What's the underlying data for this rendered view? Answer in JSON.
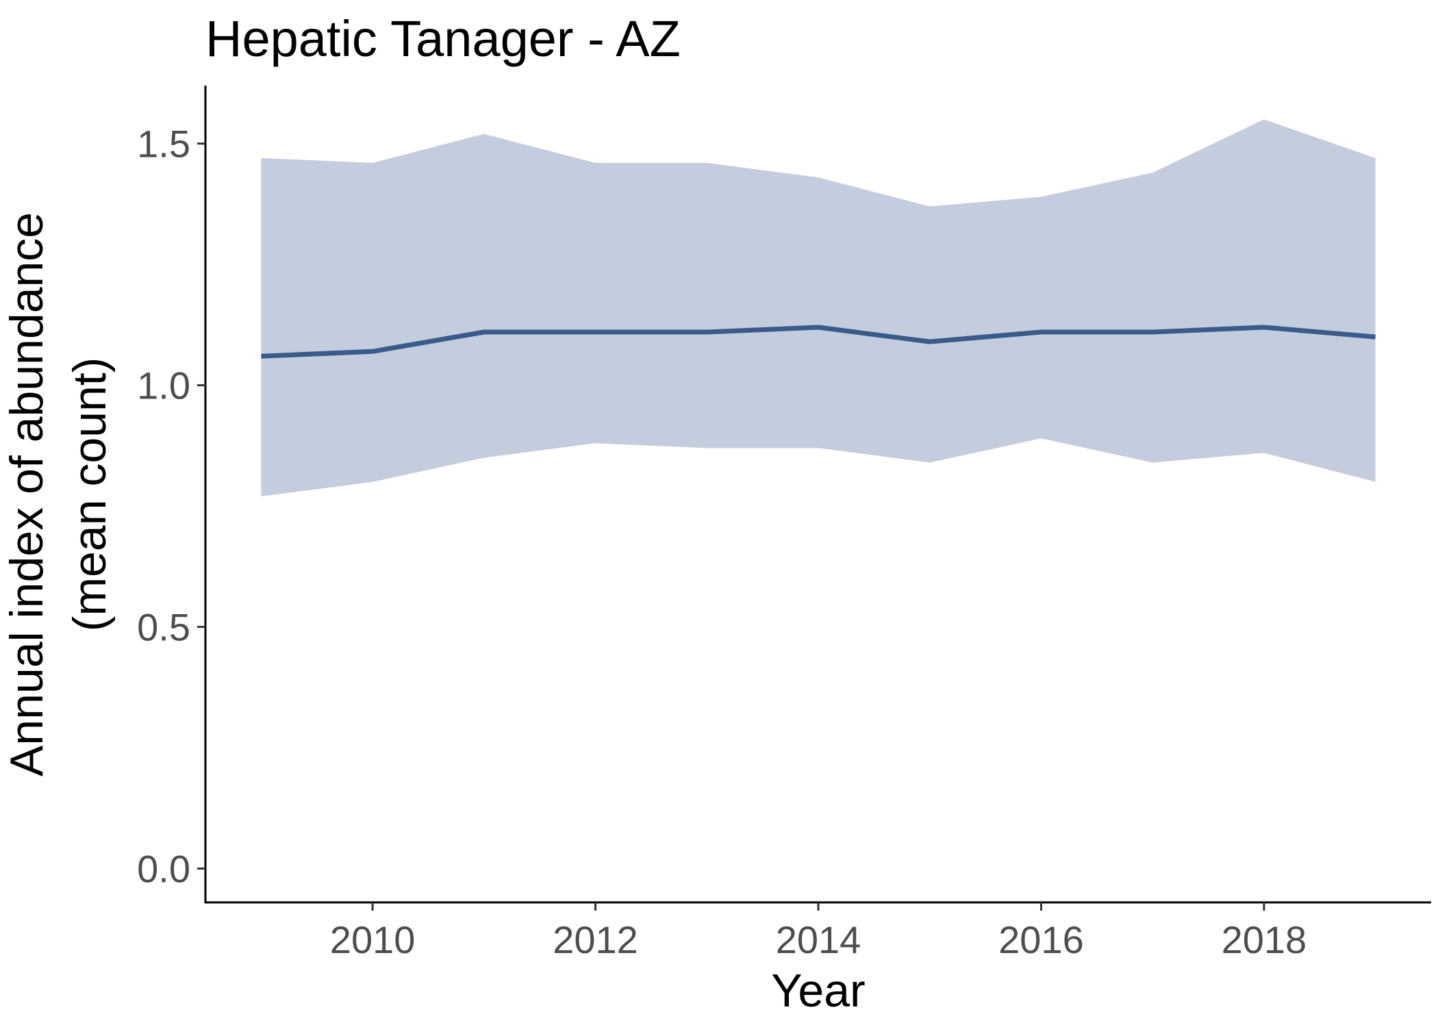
{
  "chart_data": {
    "type": "line",
    "title": "Hepatic Tanager - AZ",
    "xlabel": "Year",
    "ylabel_lines": [
      "Annual index of abundance",
      "(mean count)"
    ],
    "xlim": [
      2008.5,
      2019.5
    ],
    "ylim": [
      -0.07,
      1.62
    ],
    "x_ticks": [
      2010,
      2012,
      2014,
      2016,
      2018
    ],
    "x_tick_labels": [
      "2010",
      "2012",
      "2014",
      "2016",
      "2018"
    ],
    "y_ticks": [
      0.0,
      0.5,
      1.0,
      1.5
    ],
    "y_tick_labels": [
      "0.0",
      "0.5",
      "1.0",
      "1.5"
    ],
    "grid": false,
    "legend": "none",
    "series": [
      {
        "x": [
          2009,
          2010,
          2011,
          2012,
          2013,
          2014,
          2015,
          2016,
          2017,
          2018,
          2019
        ],
        "values": [
          1.06,
          1.07,
          1.11,
          1.11,
          1.11,
          1.12,
          1.09,
          1.11,
          1.11,
          1.12,
          1.1
        ],
        "lower": [
          0.77,
          0.8,
          0.85,
          0.88,
          0.87,
          0.87,
          0.84,
          0.89,
          0.84,
          0.86,
          0.8
        ],
        "upper": [
          1.47,
          1.46,
          1.52,
          1.46,
          1.46,
          1.43,
          1.37,
          1.39,
          1.44,
          1.55,
          1.47
        ],
        "line_color": "#3a5a8c",
        "band_color": "#c4cddd"
      }
    ]
  }
}
